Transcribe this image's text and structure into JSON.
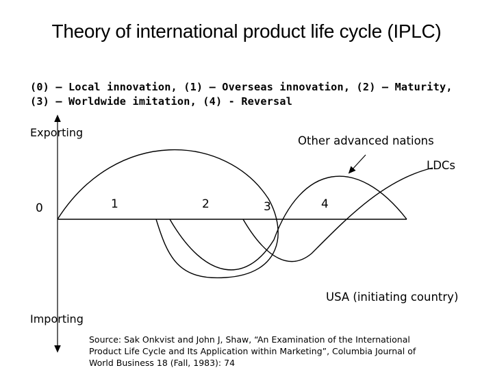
{
  "title": "Theory of international product life cycle (IPLC)",
  "stages_line1": "(0) – Local innovation, (1) – Overseas innovation, (2) – Maturity,",
  "stages_line2": "(3) – Worldwide imitation, (4) - Reversal",
  "axis": {
    "top": "Exporting",
    "bottom": "Importing"
  },
  "stage_numbers": [
    "0",
    "1",
    "2",
    "3",
    "4"
  ],
  "curves": {
    "other": "Other advanced nations",
    "ldcs": "LDCs",
    "usa": "USA (initiating country)"
  },
  "source": {
    "line1": "Source: Sak Onkvist and John J, Shaw, “An Examination of the International",
    "line2": "Product Life Cycle and Its Application within Marketing”, Columbia Journal of",
    "line3": "World Business 18 (Fall, 1983): 74"
  }
}
